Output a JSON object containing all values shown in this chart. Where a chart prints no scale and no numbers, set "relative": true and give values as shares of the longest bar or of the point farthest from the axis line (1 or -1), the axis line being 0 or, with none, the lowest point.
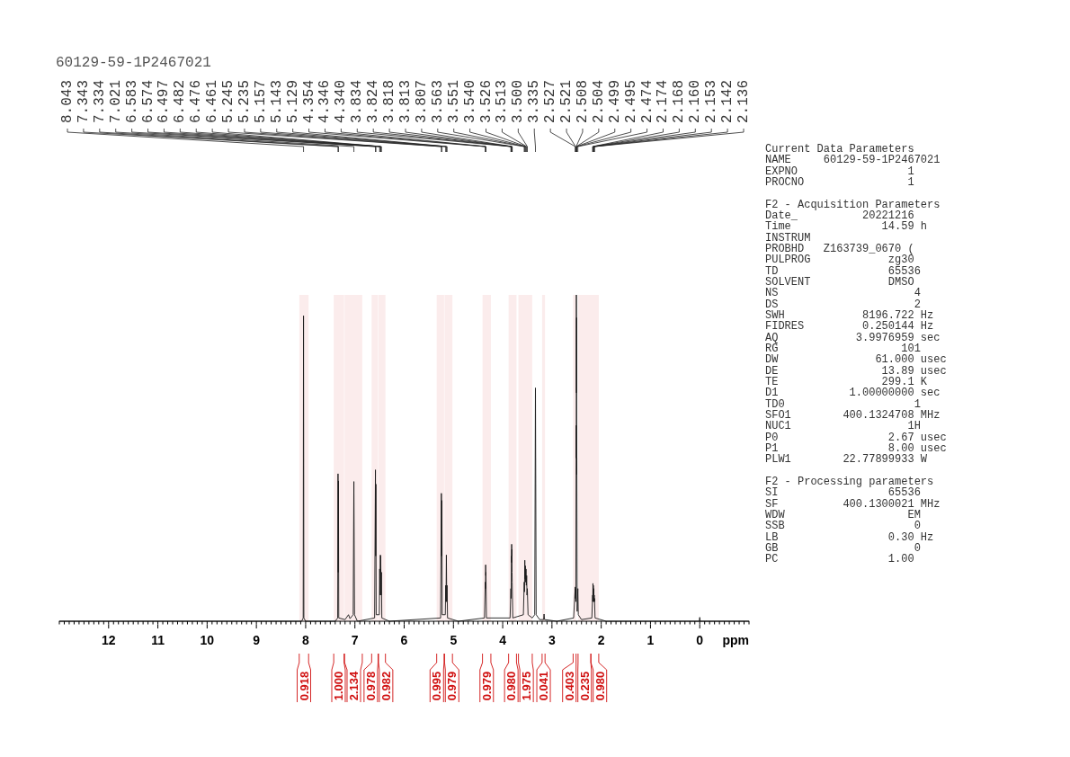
{
  "chart_data": [
    {
      "type": "line",
      "title": "60129-59-1P2467021",
      "xlabel": "ppm",
      "relative": true,
      "color": "#1a1a1a",
      "x": [
        13,
        8.08,
        8.05,
        8.043,
        8.036,
        8.0,
        7.4,
        7.35,
        7.343,
        7.338,
        7.334,
        7.328,
        7.2,
        7.13,
        7.1,
        7.035,
        7.021,
        7.008,
        6.95,
        6.6,
        6.583,
        6.578,
        6.574,
        6.568,
        6.505,
        6.497,
        6.49,
        6.482,
        6.479,
        6.476,
        6.469,
        6.461,
        6.454,
        6.3,
        5.26,
        5.245,
        5.24,
        5.235,
        5.228,
        5.165,
        5.157,
        5.15,
        5.143,
        5.136,
        5.129,
        5.12,
        4.9,
        4.37,
        4.354,
        4.35,
        4.346,
        4.343,
        4.34,
        4.33,
        3.85,
        3.834,
        3.829,
        3.824,
        3.821,
        3.818,
        3.815,
        3.813,
        3.81,
        3.807,
        3.795,
        3.58,
        3.563,
        3.557,
        3.551,
        3.546,
        3.54,
        3.533,
        3.526,
        3.52,
        3.513,
        3.507,
        3.5,
        3.485,
        3.4,
        3.35,
        3.335,
        3.32,
        3.25,
        3.17,
        3.16,
        3.15,
        2.9,
        2.56,
        2.527,
        2.524,
        2.521,
        2.515,
        2.508,
        2.506,
        2.504,
        2.502,
        2.499,
        2.497,
        2.495,
        2.488,
        2.474,
        2.465,
        2.4,
        2.19,
        2.174,
        2.171,
        2.168,
        2.164,
        2.16,
        2.157,
        2.153,
        2.148,
        2.142,
        2.139,
        2.136,
        2.125,
        1.9,
        0.01,
        0,
        -0.01,
        -1
      ],
      "values": [
        0,
        0,
        0.01,
        0.936,
        0.01,
        0,
        0,
        0.01,
        0.452,
        0.15,
        0.43,
        0.01,
        0.005,
        0.02,
        0.008,
        0.02,
        0.428,
        0.02,
        0,
        0.01,
        0.464,
        0.2,
        0.42,
        0.02,
        0.02,
        0.16,
        0.08,
        0.203,
        0.15,
        0.2,
        0.08,
        0.15,
        0.01,
        0,
        0.01,
        0.392,
        0.2,
        0.37,
        0.02,
        0.02,
        0.11,
        0.06,
        0.203,
        0.06,
        0.11,
        0.01,
        0,
        0.01,
        0.12,
        0.1,
        0.173,
        0.14,
        0.15,
        0.01,
        0.01,
        0.1,
        0.07,
        0.2,
        0.18,
        0.236,
        0.2,
        0.22,
        0.15,
        0.12,
        0.01,
        0.02,
        0.12,
        0.09,
        0.187,
        0.13,
        0.17,
        0.12,
        0.16,
        0.11,
        0.14,
        0.08,
        0.1,
        0.02,
        0.01,
        0.02,
        0.715,
        0.02,
        0.005,
        0.005,
        0.022,
        0.005,
        0,
        0.01,
        0.105,
        0.07,
        0.1,
        0.06,
        0.6,
        0.5,
        1,
        0.7,
        0.93,
        0.45,
        0.5,
        0.03,
        0.1,
        0.02,
        0.005,
        0.01,
        0.08,
        0.06,
        0.116,
        0.08,
        0.11,
        0.08,
        0.1,
        0.06,
        0.08,
        0.06,
        0.07,
        0.01,
        0,
        0,
        0.012,
        0,
        0
      ],
      "xlim": [
        13,
        -1
      ],
      "xticks": [
        {
          "value": 13,
          "label": null
        },
        {
          "value": 12.9,
          "label": null
        },
        {
          "value": 12.8,
          "label": null
        },
        {
          "value": 12.7,
          "label": null
        },
        {
          "value": 12.6,
          "label": null
        },
        {
          "value": 12.5,
          "label": null
        },
        {
          "value": 12.4,
          "label": null
        },
        {
          "value": 12.3,
          "label": null
        },
        {
          "value": 12.2,
          "label": null
        },
        {
          "value": 12.1,
          "label": null
        },
        12,
        {
          "value": 11.9,
          "label": null
        },
        {
          "value": 11.8,
          "label": null
        },
        {
          "value": 11.7,
          "label": null
        },
        {
          "value": 11.6,
          "label": null
        },
        {
          "value": 11.5,
          "label": null
        },
        {
          "value": 11.4,
          "label": null
        },
        {
          "value": 11.3,
          "label": null
        },
        {
          "value": 11.2,
          "label": null
        },
        {
          "value": 11.1,
          "label": null
        },
        11,
        {
          "value": 10.9,
          "label": null
        },
        {
          "value": 10.8,
          "label": null
        },
        {
          "value": 10.7,
          "label": null
        },
        {
          "value": 10.6,
          "label": null
        },
        {
          "value": 10.5,
          "label": null
        },
        {
          "value": 10.4,
          "label": null
        },
        {
          "value": 10.3,
          "label": null
        },
        {
          "value": 10.2,
          "label": null
        },
        {
          "value": 10.1,
          "label": null
        },
        10,
        {
          "value": 9.9,
          "label": null
        },
        {
          "value": 9.8,
          "label": null
        },
        {
          "value": 9.7,
          "label": null
        },
        {
          "value": 9.6,
          "label": null
        },
        {
          "value": 9.5,
          "label": null
        },
        {
          "value": 9.4,
          "label": null
        },
        {
          "value": 9.3,
          "label": null
        },
        {
          "value": 9.2,
          "label": null
        },
        {
          "value": 9.1,
          "label": null
        },
        9,
        {
          "value": 8.9,
          "label": null
        },
        {
          "value": 8.8,
          "label": null
        },
        {
          "value": 8.7,
          "label": null
        },
        {
          "value": 8.6,
          "label": null
        },
        {
          "value": 8.5,
          "label": null
        },
        {
          "value": 8.4,
          "label": null
        },
        {
          "value": 8.3,
          "label": null
        },
        {
          "value": 8.2,
          "label": null
        },
        {
          "value": 8.1,
          "label": null
        },
        8,
        {
          "value": 7.9,
          "label": null
        },
        {
          "value": 7.8,
          "label": null
        },
        {
          "value": 7.7,
          "label": null
        },
        {
          "value": 7.6,
          "label": null
        },
        {
          "value": 7.5,
          "label": null
        },
        {
          "value": 7.4,
          "label": null
        },
        {
          "value": 7.3,
          "label": null
        },
        {
          "value": 7.2,
          "label": null
        },
        {
          "value": 7.1,
          "label": null
        },
        7,
        {
          "value": 6.9,
          "label": null
        },
        {
          "value": 6.8,
          "label": null
        },
        {
          "value": 6.7,
          "label": null
        },
        {
          "value": 6.6,
          "label": null
        },
        {
          "value": 6.5,
          "label": null
        },
        {
          "value": 6.4,
          "label": null
        },
        {
          "value": 6.3,
          "label": null
        },
        {
          "value": 6.2,
          "label": null
        },
        {
          "value": 6.1,
          "label": null
        },
        6,
        {
          "value": 5.9,
          "label": null
        },
        {
          "value": 5.8,
          "label": null
        },
        {
          "value": 5.7,
          "label": null
        },
        {
          "value": 5.6,
          "label": null
        },
        {
          "value": 5.5,
          "label": null
        },
        {
          "value": 5.4,
          "label": null
        },
        {
          "value": 5.3,
          "label": null
        },
        {
          "value": 5.2,
          "label": null
        },
        {
          "value": 5.1,
          "label": null
        },
        5,
        {
          "value": 4.9,
          "label": null
        },
        {
          "value": 4.8,
          "label": null
        },
        {
          "value": 4.7,
          "label": null
        },
        {
          "value": 4.6,
          "label": null
        },
        {
          "value": 4.5,
          "label": null
        },
        {
          "value": 4.4,
          "label": null
        },
        {
          "value": 4.3,
          "label": null
        },
        {
          "value": 4.2,
          "label": null
        },
        {
          "value": 4.1,
          "label": null
        },
        4,
        {
          "value": 3.9,
          "label": null
        },
        {
          "value": 3.8,
          "label": null
        },
        {
          "value": 3.7,
          "label": null
        },
        {
          "value": 3.6,
          "label": null
        },
        {
          "value": 3.5,
          "label": null
        },
        {
          "value": 3.4,
          "label": null
        },
        {
          "value": 3.3,
          "label": null
        },
        {
          "value": 3.2,
          "label": null
        },
        {
          "value": 3.1,
          "label": null
        },
        3,
        {
          "value": 2.9,
          "label": null
        },
        {
          "value": 2.8,
          "label": null
        },
        {
          "value": 2.7,
          "label": null
        },
        {
          "value": 2.6,
          "label": null
        },
        {
          "value": 2.5,
          "label": null
        },
        {
          "value": 2.4,
          "label": null
        },
        {
          "value": 2.3,
          "label": null
        },
        {
          "value": 2.2,
          "label": null
        },
        {
          "value": 2.1,
          "label": null
        },
        2,
        {
          "value": 1.9,
          "label": null
        },
        {
          "value": 1.8,
          "label": null
        },
        {
          "value": 1.7,
          "label": null
        },
        {
          "value": 1.6,
          "label": null
        },
        {
          "value": 1.5,
          "label": null
        },
        {
          "value": 1.4,
          "label": null
        },
        {
          "value": 1.3,
          "label": null
        },
        {
          "value": 1.2,
          "label": null
        },
        {
          "value": 1.1,
          "label": null
        },
        1,
        {
          "value": 0.9,
          "label": null
        },
        {
          "value": 0.8,
          "label": null
        },
        {
          "value": 0.7,
          "label": null
        },
        {
          "value": 0.6,
          "label": null
        },
        {
          "value": 0.5,
          "label": null
        },
        {
          "value": 0.4,
          "label": null
        },
        {
          "value": 0.3,
          "label": null
        },
        {
          "value": 0.2,
          "label": null
        },
        {
          "value": 0.1,
          "label": null
        },
        0,
        {
          "value": -0.1,
          "label": null
        },
        {
          "value": -0.2,
          "label": null
        },
        {
          "value": -0.3,
          "label": null
        },
        {
          "value": -0.4,
          "label": null
        },
        {
          "value": -0.5,
          "label": null
        },
        {
          "value": -0.6,
          "label": null
        },
        {
          "value": -0.7,
          "label": null
        },
        {
          "value": -0.8,
          "label": null
        },
        {
          "value": -0.9,
          "label": null
        },
        {
          "value": -1,
          "label": null
        }
      ],
      "annotations": [
        {
          "text": "8.043",
          "x": 8.043
        },
        {
          "text": "7.343",
          "x": 7.343
        },
        {
          "text": "7.334",
          "x": 7.334
        },
        {
          "text": "7.021",
          "x": 7.021
        },
        {
          "text": "6.583",
          "x": 6.583
        },
        {
          "text": "6.574",
          "x": 6.574
        },
        {
          "text": "6.497",
          "x": 6.497
        },
        {
          "text": "6.482",
          "x": 6.482
        },
        {
          "text": "6.476",
          "x": 6.476
        },
        {
          "text": "6.461",
          "x": 6.461
        },
        {
          "text": "5.245",
          "x": 5.245
        },
        {
          "text": "5.235",
          "x": 5.235
        },
        {
          "text": "5.157",
          "x": 5.157
        },
        {
          "text": "5.143",
          "x": 5.143
        },
        {
          "text": "5.129",
          "x": 5.129
        },
        {
          "text": "4.354",
          "x": 4.354
        },
        {
          "text": "4.346",
          "x": 4.346
        },
        {
          "text": "4.340",
          "x": 4.34
        },
        {
          "text": "3.834",
          "x": 3.834
        },
        {
          "text": "3.824",
          "x": 3.824
        },
        {
          "text": "3.818",
          "x": 3.818
        },
        {
          "text": "3.813",
          "x": 3.813
        },
        {
          "text": "3.807",
          "x": 3.807
        },
        {
          "text": "3.563",
          "x": 3.563
        },
        {
          "text": "3.551",
          "x": 3.551
        },
        {
          "text": "3.540",
          "x": 3.54
        },
        {
          "text": "3.526",
          "x": 3.526
        },
        {
          "text": "3.513",
          "x": 3.513
        },
        {
          "text": "3.500",
          "x": 3.5
        },
        {
          "text": "3.335",
          "x": 3.335
        },
        {
          "text": "2.527",
          "x": 2.527
        },
        {
          "text": "2.521",
          "x": 2.521
        },
        {
          "text": "2.508",
          "x": 2.508
        },
        {
          "text": "2.504",
          "x": 2.504
        },
        {
          "text": "2.499",
          "x": 2.499
        },
        {
          "text": "2.495",
          "x": 2.495
        },
        {
          "text": "2.474",
          "x": 2.474
        },
        {
          "text": "2.174",
          "x": 2.174
        },
        {
          "text": "2.168",
          "x": 2.168
        },
        {
          "text": "2.160",
          "x": 2.16
        },
        {
          "text": "2.153",
          "x": 2.153
        },
        {
          "text": "2.142",
          "x": 2.142
        },
        {
          "text": "2.136",
          "x": 2.136
        }
      ],
      "bands": [
        {
          "axis": "x",
          "from": 8.13,
          "to": 7.94,
          "label": "0.918",
          "color": "#d01010"
        },
        {
          "axis": "x",
          "from": 7.43,
          "to": 7.22,
          "label": "1.000",
          "color": "#d01010"
        },
        {
          "axis": "x",
          "from": 7.21,
          "to": 6.85,
          "label": "2.134",
          "color": "#d01010"
        },
        {
          "axis": "x",
          "from": 6.66,
          "to": 6.53,
          "label": "0.978",
          "color": "#d01010"
        },
        {
          "axis": "x",
          "from": 6.52,
          "to": 6.38,
          "label": "0.982",
          "color": "#d01010"
        },
        {
          "axis": "x",
          "from": 5.34,
          "to": 5.19,
          "label": "0.995",
          "color": "#d01010"
        },
        {
          "axis": "x",
          "from": 5.18,
          "to": 5.02,
          "label": "0.979",
          "color": "#d01010"
        },
        {
          "axis": "x",
          "from": 4.41,
          "to": 4.24,
          "label": "0.979",
          "color": "#d01010"
        },
        {
          "axis": "x",
          "from": 3.88,
          "to": 3.72,
          "label": "0.980",
          "color": "#d01010"
        },
        {
          "axis": "x",
          "from": 3.68,
          "to": 3.4,
          "label": "1.975",
          "color": "#d01010"
        },
        {
          "axis": "x",
          "from": 3.2,
          "to": 3.14,
          "label": "0.041",
          "color": "#d01010"
        },
        {
          "axis": "x",
          "from": 2.57,
          "to": 2.51,
          "label": "0.403",
          "color": "#d01010"
        },
        {
          "axis": "x",
          "from": 2.47,
          "to": 2.21,
          "label": "0.235",
          "color": "#d01010"
        },
        {
          "axis": "x",
          "from": 2.21,
          "to": 2.05,
          "label": "0.980",
          "color": "#d01010"
        }
      ]
    },
    {
      "type": "other",
      "title": "Current Data Parameters",
      "annotations": [
        "NAME     60129-59-1P2467021",
        "EXPNO                 1",
        "PROCNO                1"
      ]
    },
    {
      "type": "other",
      "title": "F2 - Acquisition Parameters",
      "annotations": [
        "Date_          20221216",
        "Time              14.59 h",
        "INSTRUM",
        "PROBHD   Z163739_0670 (",
        "PULPROG            zg30",
        "TD                 65536",
        "SOLVENT            DMSO",
        "NS                     4",
        "DS                     2",
        "SWH            8196.722 Hz",
        "FIDRES         0.250144 Hz",
        "AQ            3.9976959 sec",
        "RG                   101",
        "DW               61.000 usec",
        "DE                13.89 usec",
        "TE                299.1 K",
        "D1           1.00000000 sec",
        "TD0                    1",
        "SFO1        400.1324708 MHz",
        "NUC1                  1H",
        "P0                 2.67 usec",
        "P1                 8.00 usec",
        "PLW1        22.77899933 W"
      ]
    },
    {
      "type": "other",
      "title": "F2 - Processing parameters",
      "annotations": [
        "SI                 65536",
        "SF          400.1300021 MHz",
        "WDW                   EM",
        "SSB                    0",
        "LB                 0.30 Hz",
        "GB                     0",
        "PC                 1.00"
      ]
    }
  ]
}
